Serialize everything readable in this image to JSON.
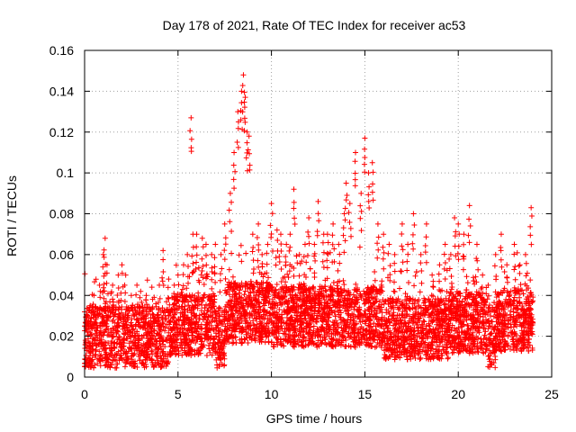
{
  "chart_data": {
    "type": "scatter",
    "title": "Day 178 of 2021, Rate Of TEC Index for receiver ac53",
    "xlabel": "GPS time / hours",
    "ylabel": "ROTI / TECUs",
    "xlim": [
      0,
      25
    ],
    "ylim": [
      0,
      0.16
    ],
    "x_ticks": [
      0,
      5,
      10,
      15,
      20,
      25
    ],
    "x_tick_labels": [
      "0",
      "5",
      "10",
      "15",
      "20",
      "25"
    ],
    "y_ticks": [
      0,
      0.02,
      0.04,
      0.06,
      0.08,
      0.1,
      0.12,
      0.14,
      0.16
    ],
    "y_tick_labels": [
      "0",
      "0.02",
      "0.04",
      "0.06",
      "0.08",
      "0.1",
      "0.12",
      "0.14",
      "0.16"
    ],
    "grid": true,
    "marker": "+",
    "color": "#ff0000",
    "series": [
      {
        "x": [
          0.0,
          0.3,
          0.5,
          0.8,
          1.0,
          1.1,
          1.2,
          1.5,
          1.8,
          2.0,
          2.2,
          2.5,
          2.8,
          3.0,
          3.3,
          3.6,
          4.0,
          4.2,
          4.5,
          4.8,
          5.0,
          5.3,
          5.5,
          5.7,
          5.8,
          6.0,
          6.3,
          6.5,
          6.8,
          7.0,
          7.3,
          7.5,
          7.8,
          8.0,
          8.2,
          8.4,
          8.5,
          8.6,
          8.7,
          8.8,
          9.0,
          9.3,
          9.5,
          9.8,
          10.0,
          10.3,
          10.5,
          10.8,
          11.0,
          11.2,
          11.5,
          11.8,
          12.0,
          12.3,
          12.5,
          12.8,
          13.0,
          13.3,
          13.6,
          13.9,
          14.0,
          14.2,
          14.5,
          14.8,
          15.0,
          15.2,
          15.4,
          15.7,
          16.0,
          16.3,
          16.6,
          17.0,
          17.3,
          17.6,
          18.0,
          18.3,
          18.6,
          19.0,
          19.3,
          19.6,
          19.8,
          20.0,
          20.3,
          20.6,
          21.0,
          21.3,
          21.6,
          22.0,
          22.3,
          22.6,
          23.0,
          23.3,
          23.6,
          23.9
        ],
        "y": [
          0.025,
          0.035,
          0.04,
          0.045,
          0.06,
          0.068,
          0.055,
          0.045,
          0.05,
          0.055,
          0.05,
          0.04,
          0.045,
          0.042,
          0.04,
          0.044,
          0.045,
          0.062,
          0.048,
          0.045,
          0.05,
          0.055,
          0.06,
          0.127,
          0.07,
          0.07,
          0.068,
          0.065,
          0.06,
          0.065,
          0.06,
          0.075,
          0.09,
          0.11,
          0.13,
          0.14,
          0.148,
          0.137,
          0.12,
          0.118,
          0.07,
          0.075,
          0.06,
          0.065,
          0.085,
          0.072,
          0.07,
          0.065,
          0.07,
          0.092,
          0.06,
          0.065,
          0.078,
          0.065,
          0.086,
          0.07,
          0.07,
          0.075,
          0.065,
          0.08,
          0.095,
          0.085,
          0.11,
          0.09,
          0.117,
          0.1,
          0.105,
          0.075,
          0.07,
          0.065,
          0.06,
          0.075,
          0.065,
          0.08,
          0.06,
          0.075,
          0.05,
          0.055,
          0.065,
          0.06,
          0.078,
          0.075,
          0.07,
          0.084,
          0.065,
          0.05,
          0.045,
          0.06,
          0.07,
          0.055,
          0.065,
          0.055,
          0.06,
          0.083
        ]
      }
    ]
  }
}
